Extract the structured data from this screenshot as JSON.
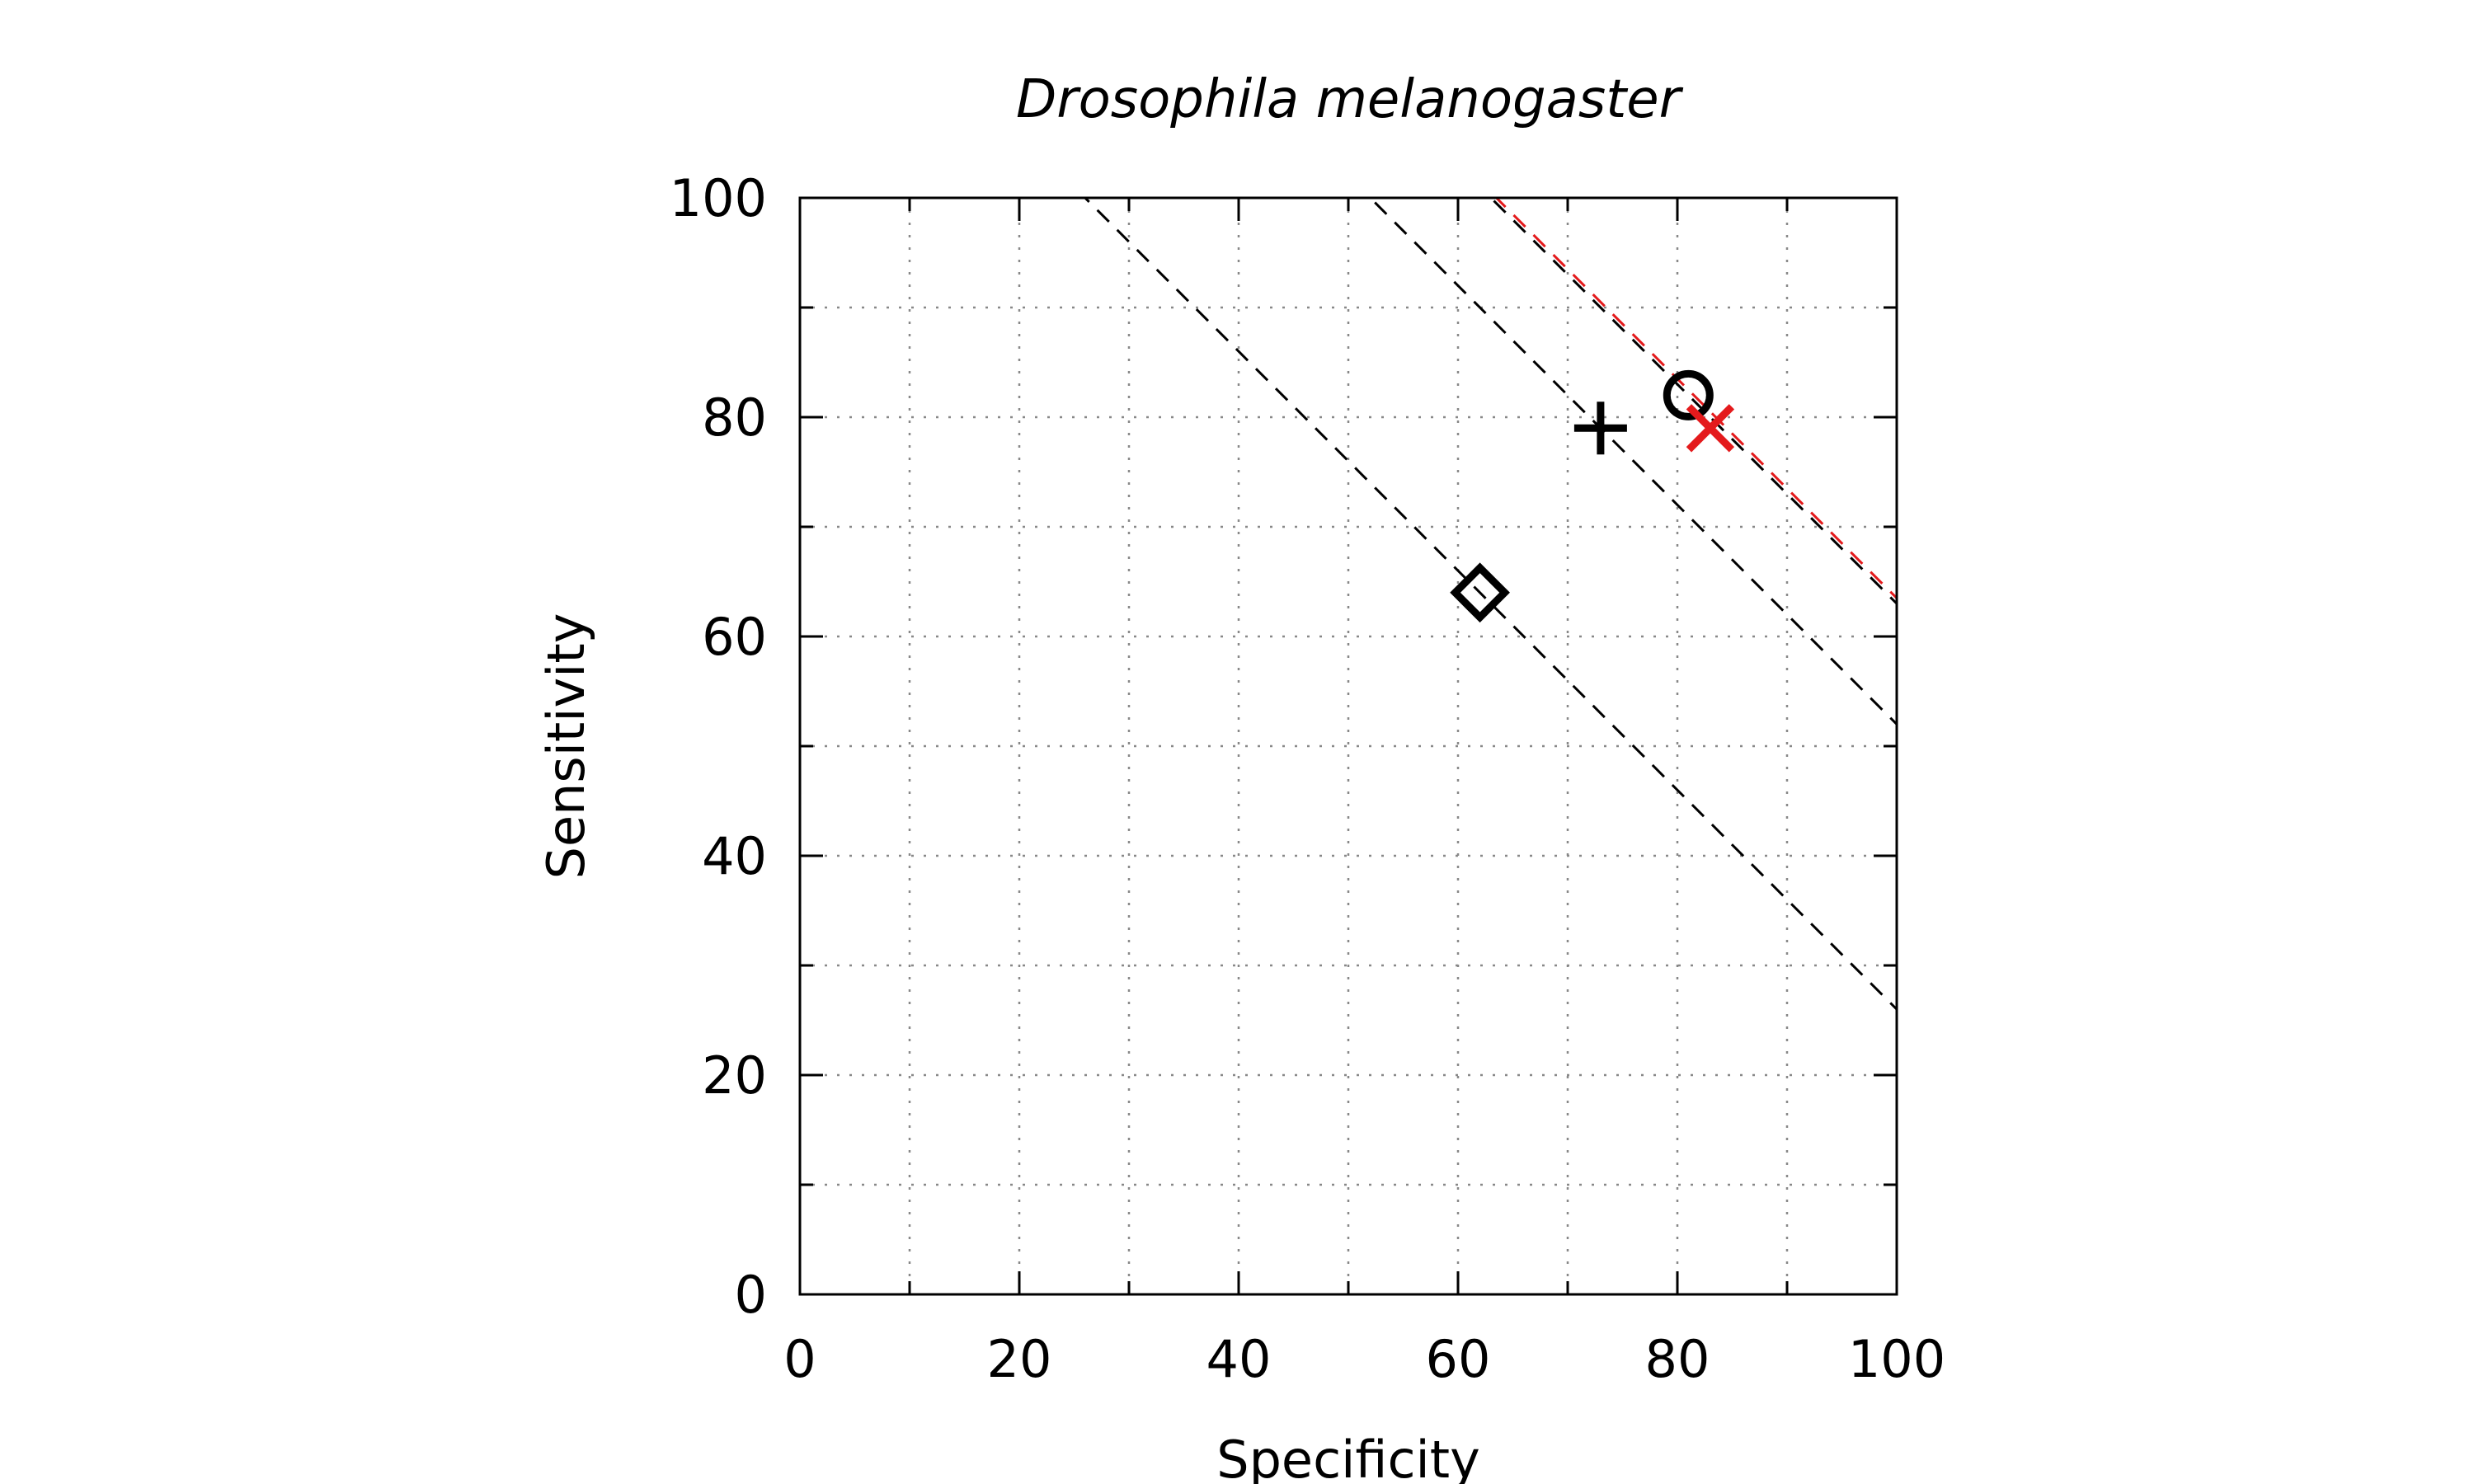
{
  "chart_data": {
    "type": "scatter",
    "title": "Drosophila melanogaster",
    "xlabel": "Specificity",
    "ylabel": "Sensitivity",
    "xlim": [
      0,
      100
    ],
    "ylim": [
      0,
      100
    ],
    "xticks": [
      0,
      20,
      40,
      60,
      80,
      100
    ],
    "yticks": [
      0,
      20,
      40,
      60,
      80,
      100
    ],
    "minor_step": 10,
    "grid": true,
    "points": [
      {
        "marker": "diamond",
        "x": 62,
        "y": 64,
        "color": "#000000"
      },
      {
        "marker": "plus",
        "x": 73,
        "y": 79,
        "color": "#000000"
      },
      {
        "marker": "circle",
        "x": 81,
        "y": 82,
        "color": "#000000"
      },
      {
        "marker": "cross",
        "x": 83,
        "y": 79,
        "color": "#e41a1c"
      }
    ],
    "reference_lines": [
      {
        "sum": 126,
        "color": "#000000"
      },
      {
        "sum": 152,
        "color": "#000000"
      },
      {
        "sum": 163,
        "color": "#000000"
      },
      {
        "sum": 163.5,
        "color": "#e41a1c"
      }
    ]
  }
}
